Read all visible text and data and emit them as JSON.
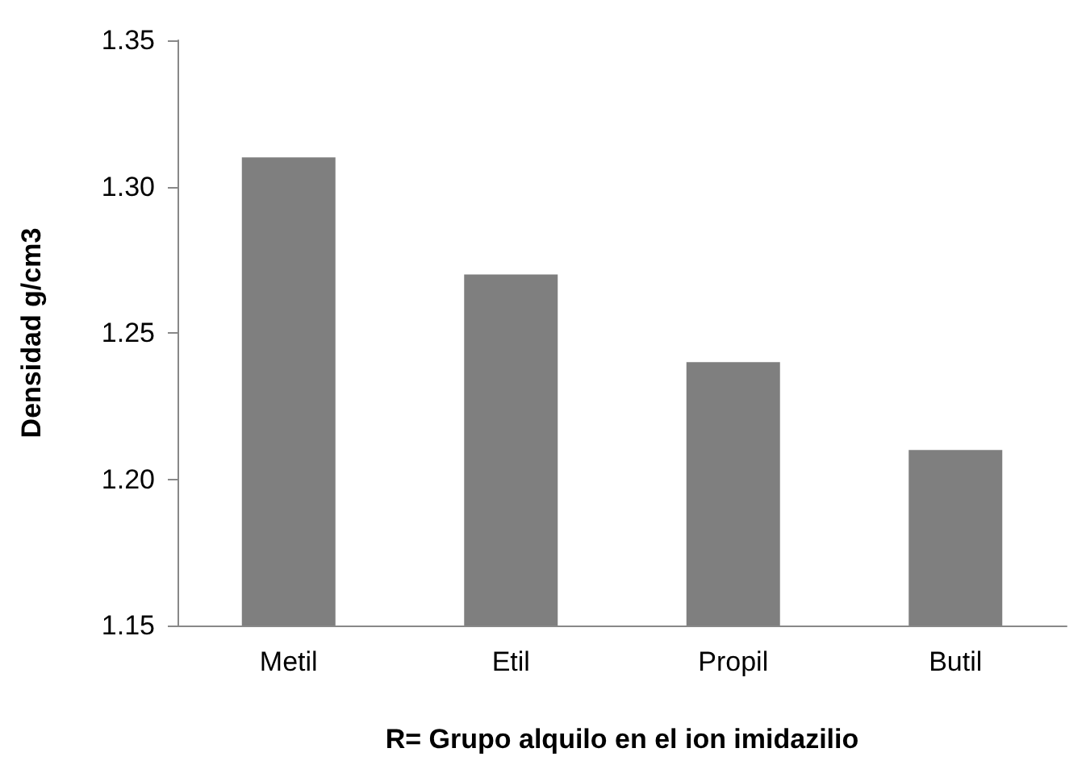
{
  "chart_data": {
    "type": "bar",
    "xlabel": "R= Grupo alquilo en el ion imidazilio",
    "ylabel": "Densidad g/cm3",
    "categories": [
      "Metil",
      "Etil",
      "Propil",
      "Butil"
    ],
    "values": [
      1.31,
      1.27,
      1.24,
      1.21
    ],
    "color": "#7f7f7f",
    "ylim": [
      1.15,
      1.35
    ],
    "yticks": [
      {
        "value": 1.15,
        "label": "1.15"
      },
      {
        "value": 1.2,
        "label": "1.20"
      },
      {
        "value": 1.25,
        "label": "1.25"
      },
      {
        "value": 1.3,
        "label": "1.30"
      },
      {
        "value": 1.35,
        "label": "1.35"
      }
    ],
    "grid": false
  }
}
